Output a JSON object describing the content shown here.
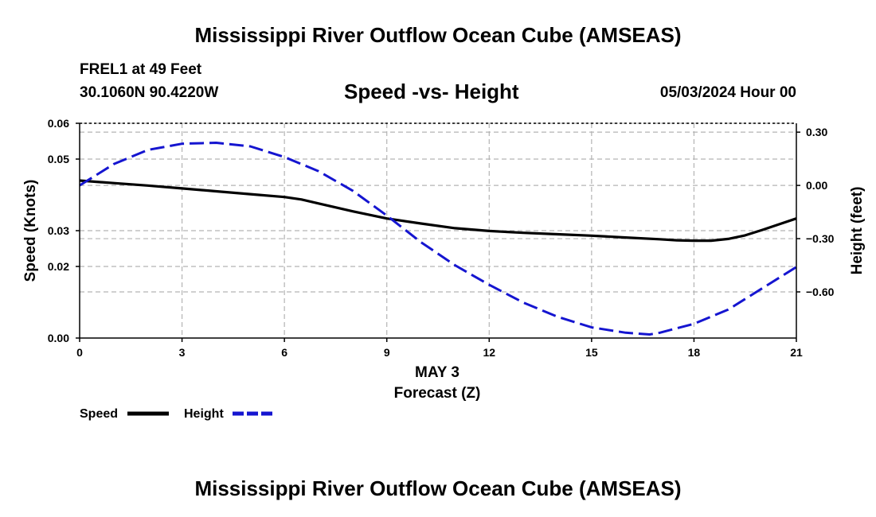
{
  "header": {
    "title": "Mississippi River Outflow Ocean Cube (AMSEAS)",
    "station": "FREL1 at 49 Feet",
    "coords": "30.1060N  90.4220W",
    "subtitle": "Speed -vs- Height",
    "datetime": "05/03/2024 Hour 00"
  },
  "footer": {
    "title": "Mississippi River Outflow Ocean Cube (AMSEAS)"
  },
  "chart_data": {
    "type": "line",
    "title": "Speed -vs- Height",
    "xlabel": "Forecast (Z)",
    "date_label": "MAY 3",
    "ylabel_left": "Speed (Knots)",
    "ylabel_right": "Height (feet)",
    "xlim": [
      0,
      21
    ],
    "x_ticks": [
      0,
      3,
      6,
      9,
      12,
      15,
      18,
      21
    ],
    "x_tick_labels": [
      "0",
      "3",
      "6",
      "9",
      "12",
      "15",
      "18",
      "21"
    ],
    "ylim_left": [
      0.0,
      0.06
    ],
    "y_left_ticks": [
      0.0,
      0.02,
      0.03,
      0.05,
      0.06
    ],
    "y_left_tick_labels": [
      "0.00",
      "0.02",
      "0.03",
      "0.05",
      "0.06"
    ],
    "ylim_right": [
      -0.86,
      0.35
    ],
    "y_right_ticks": [
      -0.6,
      -0.3,
      0.0,
      0.3
    ],
    "y_right_tick_labels": [
      "−0.60",
      "−0.30",
      "0.00",
      "0.30"
    ],
    "grid": true,
    "legend_position": "bottom-left",
    "series": [
      {
        "name": "Speed",
        "axis": "left",
        "color": "#000000",
        "style": "solid",
        "x": [
          0,
          1,
          2,
          3,
          4,
          5,
          6,
          6.5,
          7,
          8,
          9,
          10,
          11,
          12,
          13,
          14,
          15,
          16,
          17,
          17.5,
          18,
          18.5,
          19,
          19.5,
          20,
          20.5,
          21
        ],
        "values": [
          0.044,
          0.0433,
          0.0426,
          0.0418,
          0.041,
          0.0402,
          0.0394,
          0.0387,
          0.0376,
          0.0354,
          0.0334,
          0.032,
          0.0307,
          0.0299,
          0.0294,
          0.029,
          0.0286,
          0.0281,
          0.0276,
          0.0273,
          0.0272,
          0.0272,
          0.0277,
          0.0287,
          0.0302,
          0.0318,
          0.0334
        ]
      },
      {
        "name": "Height",
        "axis": "right",
        "color": "#1515d0",
        "style": "dashed",
        "x": [
          0,
          1,
          2,
          3,
          4,
          5,
          6,
          7,
          8,
          9,
          10,
          11,
          12,
          13,
          14,
          15,
          16,
          16.7,
          17,
          18,
          19,
          20,
          21
        ],
        "values": [
          0.0,
          0.12,
          0.2,
          0.235,
          0.24,
          0.22,
          0.16,
          0.08,
          -0.03,
          -0.17,
          -0.32,
          -0.45,
          -0.56,
          -0.66,
          -0.74,
          -0.8,
          -0.83,
          -0.84,
          -0.83,
          -0.78,
          -0.7,
          -0.58,
          -0.46
        ]
      }
    ]
  }
}
